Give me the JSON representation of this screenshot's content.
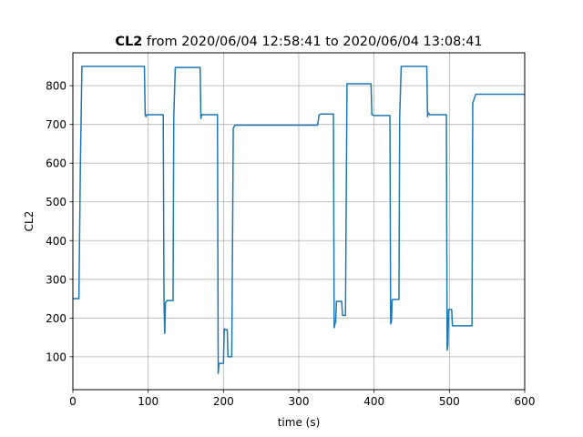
{
  "chart_data": {
    "type": "line",
    "title": {
      "bold": "CL2",
      "rest": " from 2020/06/04 12:58:41 to 2020/06/04 13:08:41"
    },
    "xlabel": "time (s)",
    "ylabel": "CL2",
    "xlim": [
      0,
      600
    ],
    "ylim": [
      15,
      885
    ],
    "xticks": [
      0,
      100,
      200,
      300,
      400,
      500,
      600
    ],
    "yticks": [
      100,
      200,
      300,
      400,
      500,
      600,
      700,
      800
    ],
    "grid": true,
    "series": [
      {
        "color": "#1f77b4",
        "x": [
          0,
          8,
          10,
          12,
          15,
          95,
          96,
          97,
          98,
          120,
          121,
          122,
          123,
          125,
          133,
          134,
          136,
          137,
          169,
          170,
          171,
          192,
          193,
          194,
          197,
          200,
          201,
          203,
          205,
          206,
          211,
          213,
          215,
          217,
          220,
          325,
          327,
          330,
          346,
          347,
          348,
          349,
          350,
          351,
          357,
          358,
          362,
          364,
          366,
          396,
          397,
          398,
          400,
          421,
          422,
          423,
          424,
          425,
          427,
          433,
          434,
          436,
          438,
          440,
          470,
          471,
          472,
          474,
          476,
          496,
          497,
          498,
          499,
          500,
          503,
          504,
          520,
          521,
          530,
          531,
          535,
          600
        ],
        "y": [
          250,
          250,
          600,
          850,
          850,
          850,
          725,
          720,
          725,
          725,
          240,
          160,
          240,
          245,
          245,
          720,
          847,
          847,
          847,
          715,
          725,
          725,
          57,
          83,
          83,
          83,
          172,
          170,
          170,
          100,
          100,
          690,
          698,
          698,
          698,
          698,
          725,
          727,
          727,
          175,
          185,
          190,
          243,
          243,
          243,
          207,
          207,
          805,
          805,
          805,
          725,
          725,
          723,
          723,
          185,
          190,
          247,
          248,
          248,
          248,
          720,
          850,
          850,
          850,
          850,
          720,
          730,
          725,
          725,
          725,
          117,
          130,
          222,
          222,
          222,
          180,
          180,
          180,
          180,
          755,
          778,
          778
        ]
      }
    ]
  }
}
